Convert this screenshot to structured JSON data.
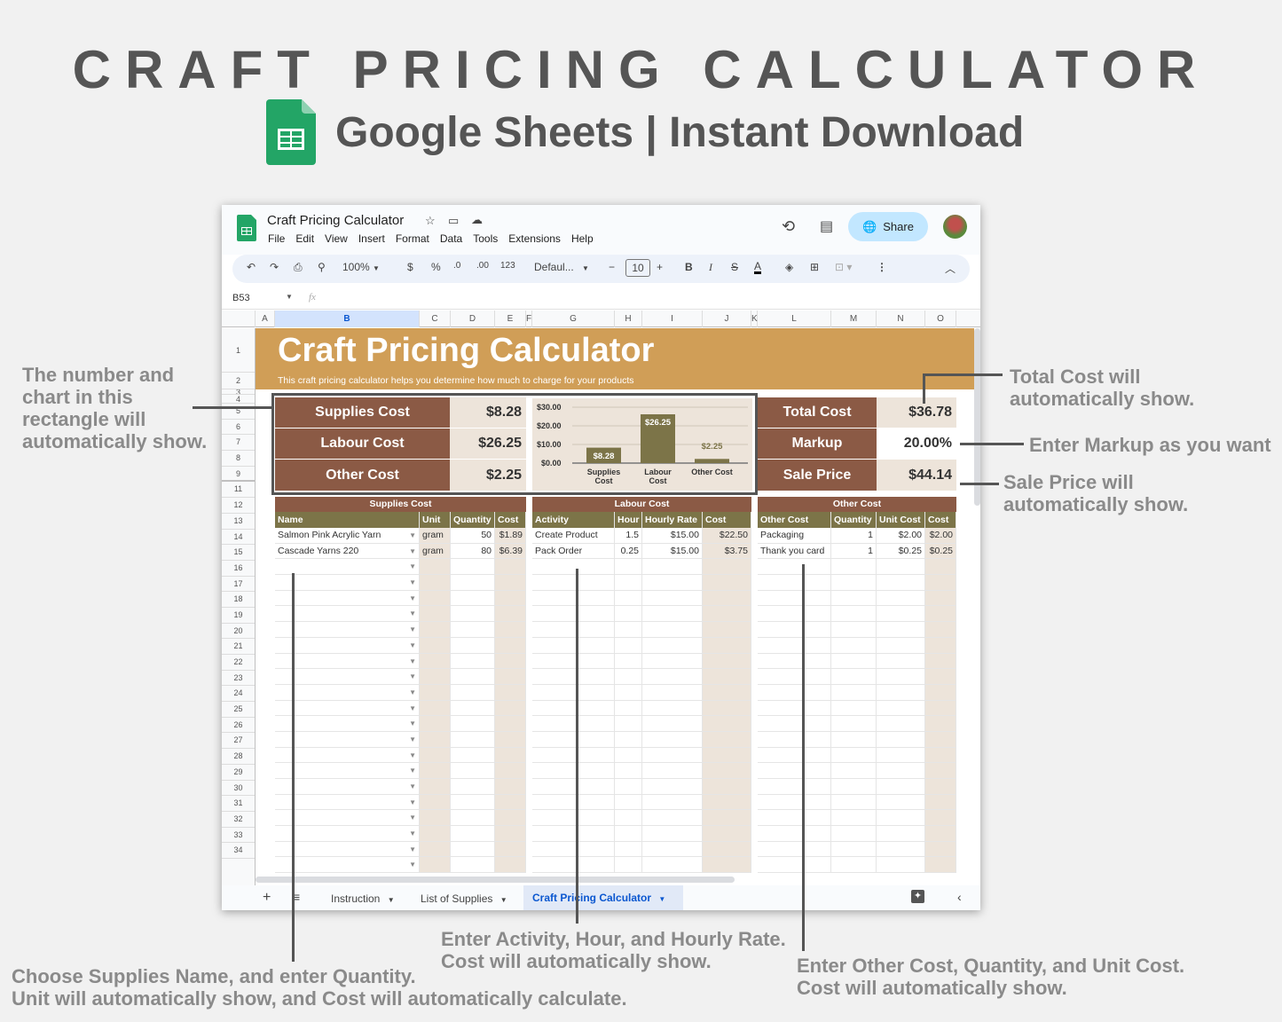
{
  "hero": {
    "title": "CRAFT PRICING CALCULATOR",
    "subtitle": "Google Sheets | Instant Download"
  },
  "callouts": {
    "rectangle": "The number and chart in this rectangle will automatically show.",
    "rectangle_lines": [
      "The number and",
      "chart in this",
      "rectangle will",
      "automatically show."
    ],
    "total_cost": [
      "Total Cost will",
      "automatically show."
    ],
    "markup": "Enter Markup as you want",
    "sale_price": [
      "Sale Price will",
      "automatically show."
    ],
    "supplies": [
      "Choose Supplies Name, and enter Quantity.",
      "Unit will automatically show, and Cost will automatically calculate."
    ],
    "labour": [
      "Enter Activity, Hour, and Hourly Rate.",
      "Cost will automatically show."
    ],
    "other": [
      "Enter Other Cost, Quantity, and Unit Cost.",
      "Cost will automatically show."
    ]
  },
  "app": {
    "doc_title": "Craft Pricing Calculator",
    "menu": [
      "File",
      "Edit",
      "View",
      "Insert",
      "Format",
      "Data",
      "Tools",
      "Extensions",
      "Help"
    ],
    "share_label": "Share",
    "toolbar": {
      "zoom": "100%",
      "currency": "$",
      "percent": "%",
      "dec_decrease": ".0",
      "dec_increase": ".00",
      "number_format": "123",
      "font": "Defaul...",
      "font_size": "10",
      "bold": "B",
      "italic": "I",
      "strike": "S",
      "text_color": "A"
    },
    "name_box": "B53",
    "fx": "fx",
    "columns": [
      "A",
      "B",
      "C",
      "D",
      "E",
      "F",
      "G",
      "H",
      "I",
      "J",
      "K",
      "L",
      "M",
      "N",
      "O"
    ],
    "rows": [
      "1",
      "2",
      "3",
      "4",
      "5",
      "6",
      "7",
      "8",
      "9",
      "11",
      "12",
      "13",
      "14",
      "15",
      "16",
      "17",
      "18",
      "19",
      "20",
      "21",
      "22",
      "23",
      "24",
      "25",
      "26",
      "27",
      "28",
      "29",
      "30",
      "31",
      "32",
      "33",
      "34"
    ],
    "sheet_tabs": [
      "Instruction",
      "List of Supplies",
      "Craft Pricing Calculator"
    ],
    "active_tab": "Craft Pricing Calculator"
  },
  "sheet": {
    "title": "Craft Pricing Calculator",
    "subtitle": "This craft pricing calculator helps you determine how much to charge for your products",
    "summary_left": [
      {
        "label": "Supplies Cost",
        "value": "$8.28"
      },
      {
        "label": "Labour Cost",
        "value": "$26.25"
      },
      {
        "label": "Other Cost",
        "value": "$2.25"
      }
    ],
    "summary_right": [
      {
        "label": "Total Cost",
        "value": "$36.78"
      },
      {
        "label": "Markup",
        "value": "20.00%"
      },
      {
        "label": "Sale Price",
        "value": "$44.14"
      }
    ],
    "supplies": {
      "title": "Supplies Cost",
      "headers": [
        "Name",
        "Unit",
        "Quantity",
        "Cost"
      ],
      "rows": [
        [
          "Salmon Pink Acrylic Yarn",
          "gram",
          "50",
          "$1.89"
        ],
        [
          "Cascade Yarns 220",
          "gram",
          "80",
          "$6.39"
        ]
      ]
    },
    "labour": {
      "title": "Labour Cost",
      "headers": [
        "Activity",
        "Hour",
        "Hourly Rate",
        "Cost"
      ],
      "rows": [
        [
          "Create Product",
          "1.5",
          "$15.00",
          "$22.50"
        ],
        [
          "Pack Order",
          "0.25",
          "$15.00",
          "$3.75"
        ]
      ]
    },
    "other": {
      "title": "Other Cost",
      "headers": [
        "Other Cost",
        "Quantity",
        "Unit Cost",
        "Cost"
      ],
      "rows": [
        [
          "Packaging",
          "1",
          "$2.00",
          "$2.00"
        ],
        [
          "Thank you card",
          "1",
          "$0.25",
          "$0.25"
        ]
      ]
    }
  },
  "chart_data": {
    "type": "bar",
    "categories": [
      "Supplies Cost",
      "Labour Cost",
      "Other Cost"
    ],
    "values": [
      8.28,
      26.25,
      2.25
    ],
    "data_labels": [
      "$8.28",
      "$26.25",
      "$2.25"
    ],
    "yticks": [
      "$30.00",
      "$20.00",
      "$10.00",
      "$0.00"
    ],
    "ylim": [
      0,
      30
    ],
    "title": "",
    "xlabel": "",
    "ylabel": "",
    "bar_color": "#7c7448",
    "background": "#ede4da",
    "grid": true,
    "legend": false
  },
  "colors": {
    "banner": "#d09e57",
    "label_brown": "#8b5a45",
    "subheader_olive": "#7c7448",
    "tan_fill": "#ede4da",
    "share_blue": "#c2e7ff",
    "active_tab_text": "#0b57d0"
  }
}
